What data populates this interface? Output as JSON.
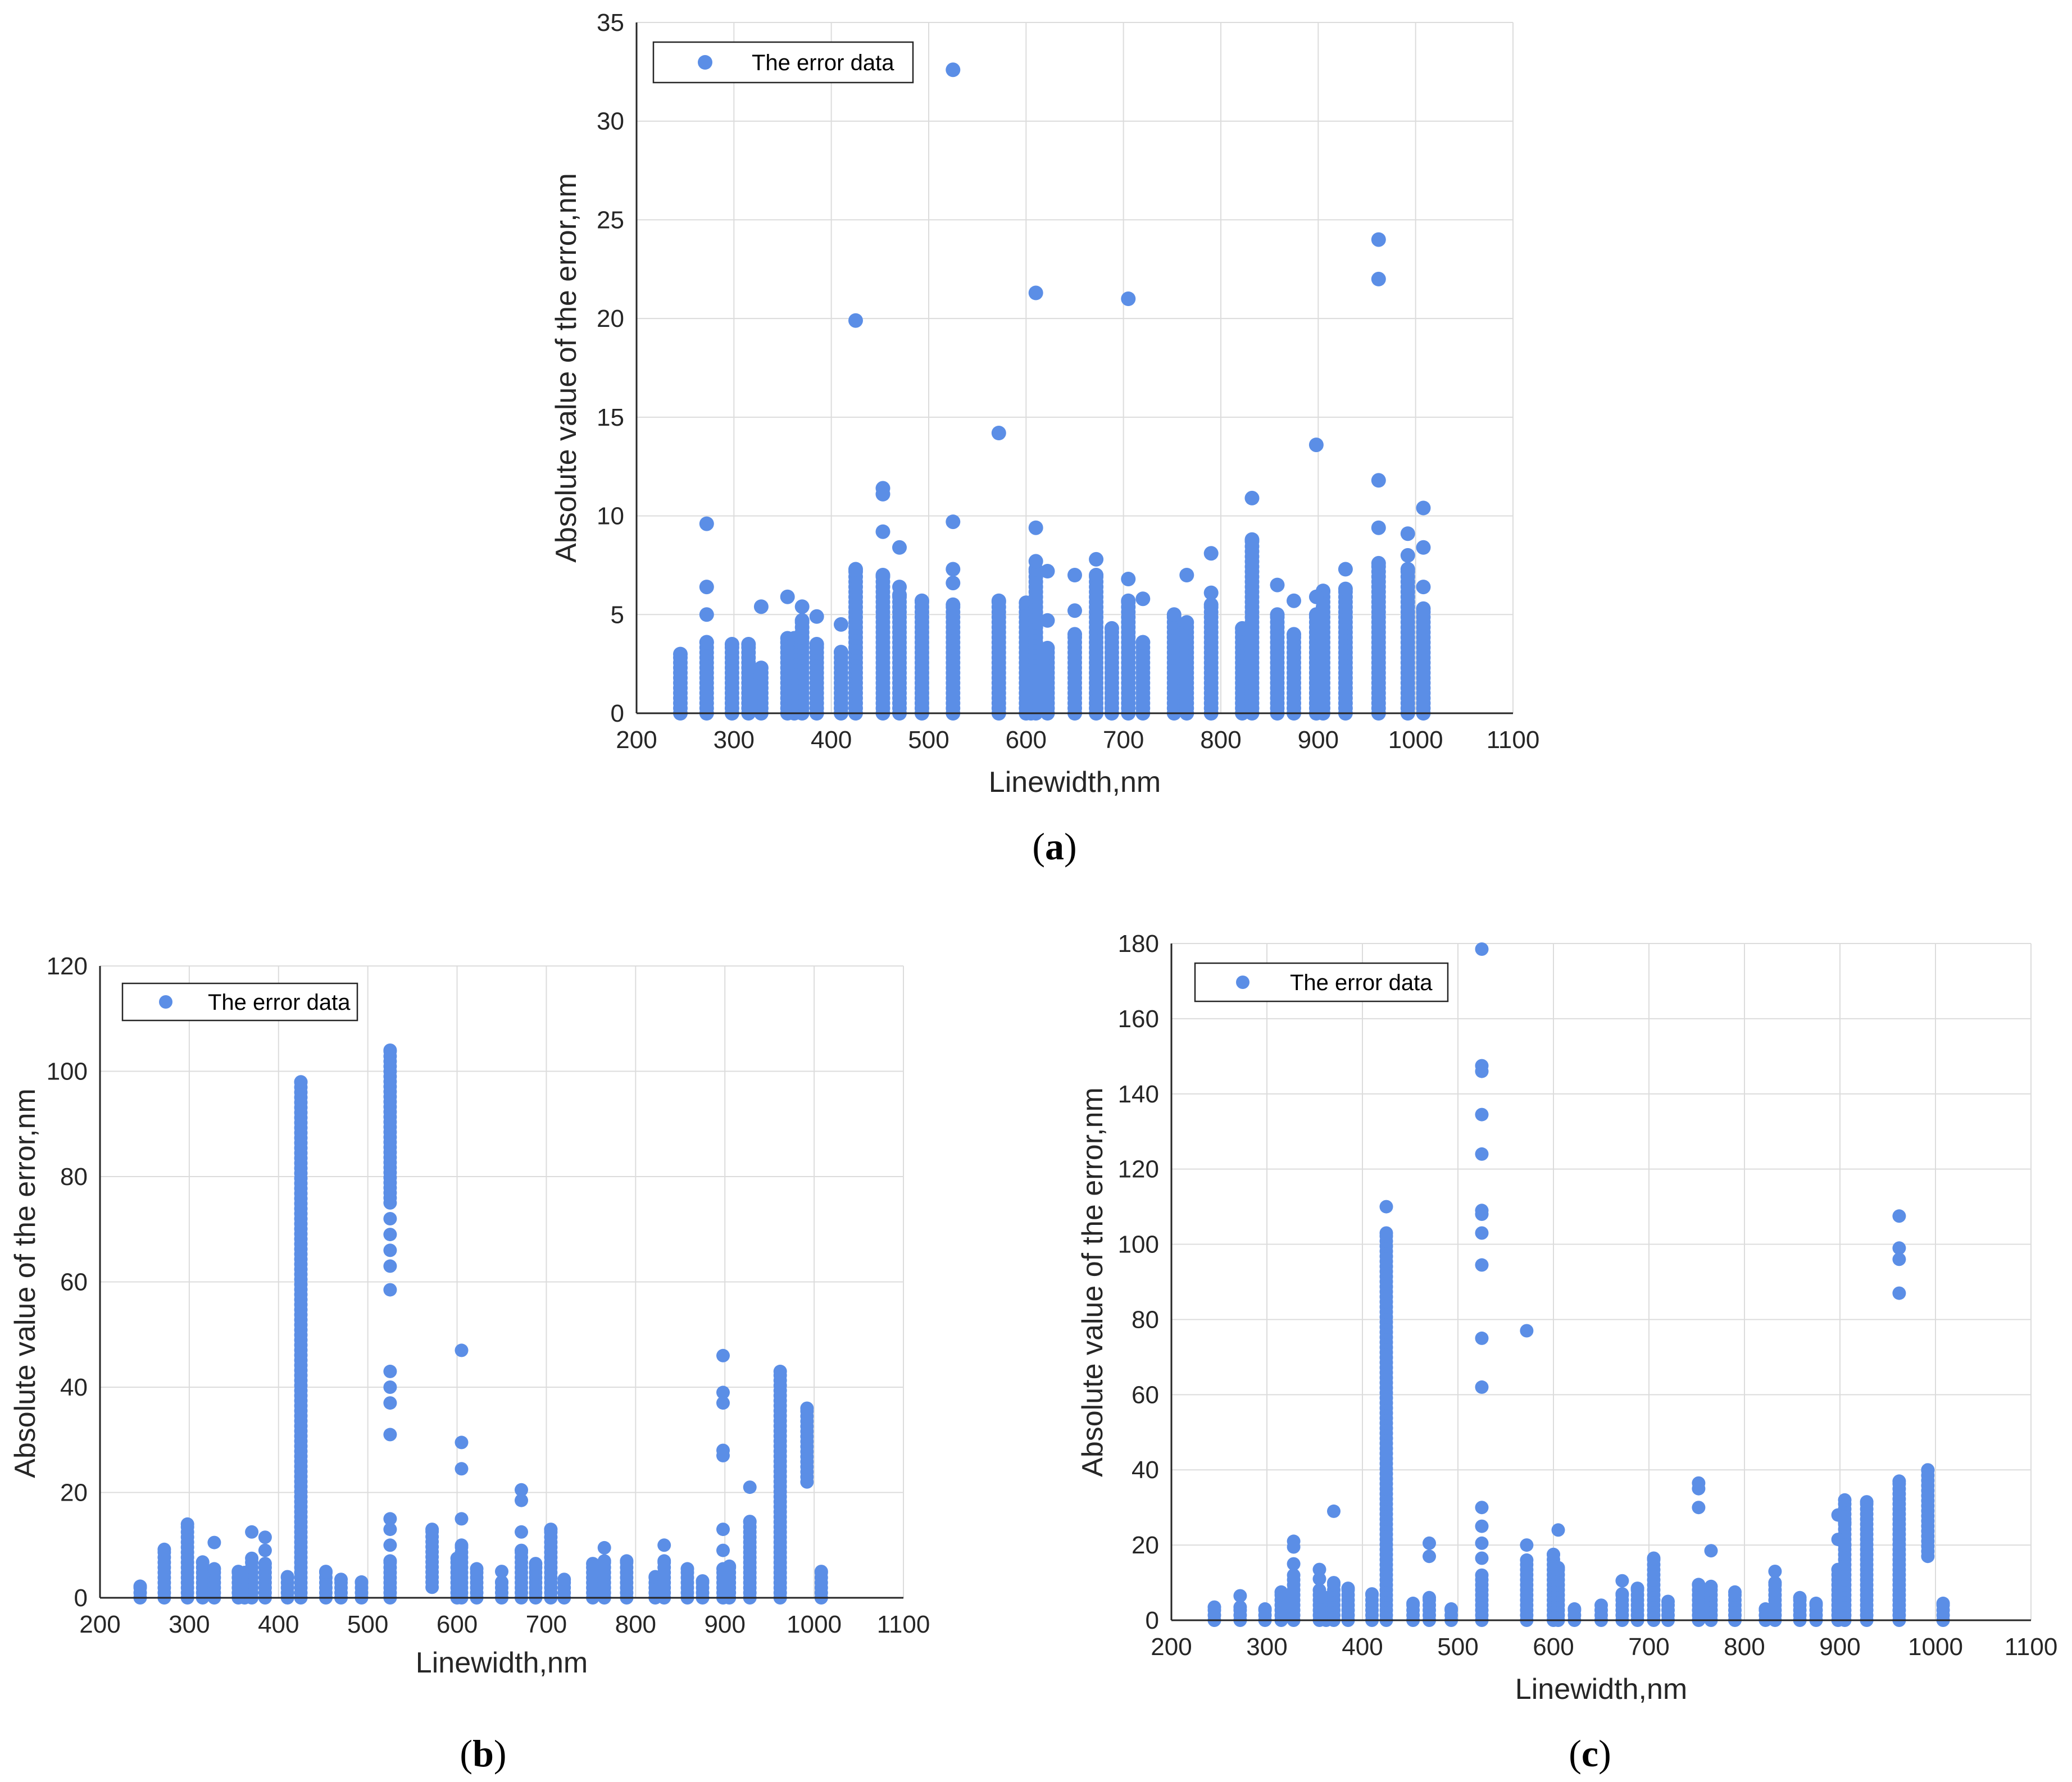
{
  "chart_data": [
    {
      "id": "a",
      "type": "scatter",
      "caption": "a",
      "xlabel": "Linewidth,nm",
      "ylabel": "Absolute value of the error,nm",
      "xlim": [
        200,
        1100
      ],
      "ylim": [
        0,
        35
      ],
      "xticks": [
        "200",
        "300",
        "400",
        "500",
        "600",
        "700",
        "800",
        "900",
        "1000",
        "1100"
      ],
      "yticks": [
        "0",
        "5",
        "10",
        "15",
        "20",
        "25",
        "30",
        "35"
      ],
      "legend": "The error data",
      "legend_position": "top-left",
      "color": "#5b8ee6",
      "clusters": [
        {
          "x": 245,
          "max": 3.0
        },
        {
          "x": 272,
          "max": 3.6
        },
        {
          "x": 298,
          "max": 3.5
        },
        {
          "x": 315,
          "max": 3.5
        },
        {
          "x": 328,
          "max": 2.3
        },
        {
          "x": 355,
          "max": 3.8
        },
        {
          "x": 362,
          "max": 3.8
        },
        {
          "x": 370,
          "max": 4.7
        },
        {
          "x": 385,
          "max": 3.5
        },
        {
          "x": 410,
          "max": 3.1
        },
        {
          "x": 425,
          "max": 7.3
        },
        {
          "x": 453,
          "max": 7.0
        },
        {
          "x": 470,
          "max": 6.0
        },
        {
          "x": 493,
          "max": 5.7
        },
        {
          "x": 525,
          "max": 5.5
        },
        {
          "x": 572,
          "max": 5.7
        },
        {
          "x": 600,
          "max": 5.6
        },
        {
          "x": 605,
          "max": 5.0
        },
        {
          "x": 610,
          "max": 7.3
        },
        {
          "x": 622,
          "max": 3.3
        },
        {
          "x": 650,
          "max": 4.0
        },
        {
          "x": 672,
          "max": 7.0
        },
        {
          "x": 688,
          "max": 4.3
        },
        {
          "x": 705,
          "max": 5.7
        },
        {
          "x": 720,
          "max": 3.6
        },
        {
          "x": 752,
          "max": 5.0
        },
        {
          "x": 765,
          "max": 4.6
        },
        {
          "x": 790,
          "max": 5.5
        },
        {
          "x": 822,
          "max": 4.3
        },
        {
          "x": 832,
          "max": 8.8
        },
        {
          "x": 858,
          "max": 5.0
        },
        {
          "x": 875,
          "max": 4.0
        },
        {
          "x": 898,
          "max": 5.0
        },
        {
          "x": 905,
          "max": 6.2
        },
        {
          "x": 928,
          "max": 6.3
        },
        {
          "x": 962,
          "max": 7.6
        },
        {
          "x": 992,
          "max": 7.3
        },
        {
          "x": 1008,
          "max": 5.3
        }
      ],
      "outliers": [
        {
          "x": 272,
          "y": 9.6
        },
        {
          "x": 272,
          "y": 6.4
        },
        {
          "x": 272,
          "y": 5.0
        },
        {
          "x": 328,
          "y": 5.4
        },
        {
          "x": 355,
          "y": 5.9
        },
        {
          "x": 370,
          "y": 5.4
        },
        {
          "x": 385,
          "y": 4.9
        },
        {
          "x": 410,
          "y": 4.5
        },
        {
          "x": 425,
          "y": 19.9
        },
        {
          "x": 453,
          "y": 11.4
        },
        {
          "x": 453,
          "y": 11.1
        },
        {
          "x": 453,
          "y": 9.2
        },
        {
          "x": 470,
          "y": 8.4
        },
        {
          "x": 470,
          "y": 6.4
        },
        {
          "x": 525,
          "y": 32.6
        },
        {
          "x": 525,
          "y": 9.7
        },
        {
          "x": 525,
          "y": 7.3
        },
        {
          "x": 525,
          "y": 6.6
        },
        {
          "x": 572,
          "y": 14.2
        },
        {
          "x": 610,
          "y": 21.3
        },
        {
          "x": 610,
          "y": 9.4
        },
        {
          "x": 610,
          "y": 7.7
        },
        {
          "x": 622,
          "y": 7.2
        },
        {
          "x": 622,
          "y": 4.7
        },
        {
          "x": 650,
          "y": 7.0
        },
        {
          "x": 650,
          "y": 5.2
        },
        {
          "x": 672,
          "y": 7.8
        },
        {
          "x": 705,
          "y": 21.0
        },
        {
          "x": 705,
          "y": 6.8
        },
        {
          "x": 720,
          "y": 5.8
        },
        {
          "x": 765,
          "y": 7.0
        },
        {
          "x": 790,
          "y": 8.1
        },
        {
          "x": 790,
          "y": 6.1
        },
        {
          "x": 832,
          "y": 10.9
        },
        {
          "x": 858,
          "y": 6.5
        },
        {
          "x": 875,
          "y": 5.7
        },
        {
          "x": 898,
          "y": 13.6
        },
        {
          "x": 898,
          "y": 5.9
        },
        {
          "x": 928,
          "y": 7.3
        },
        {
          "x": 962,
          "y": 24.0
        },
        {
          "x": 962,
          "y": 22.0
        },
        {
          "x": 962,
          "y": 11.8
        },
        {
          "x": 962,
          "y": 9.4
        },
        {
          "x": 992,
          "y": 9.1
        },
        {
          "x": 992,
          "y": 8.0
        },
        {
          "x": 1008,
          "y": 10.4
        },
        {
          "x": 1008,
          "y": 8.4
        },
        {
          "x": 1008,
          "y": 6.4
        }
      ]
    },
    {
      "id": "b",
      "type": "scatter",
      "caption": "b",
      "xlabel": "Linewidth,nm",
      "ylabel": "Absolute value of the error,nm",
      "xlim": [
        200,
        1100
      ],
      "ylim": [
        0,
        120
      ],
      "xticks": [
        "200",
        "300",
        "400",
        "500",
        "600",
        "700",
        "800",
        "900",
        "1000",
        "1100"
      ],
      "yticks": [
        "0",
        "20",
        "40",
        "60",
        "80",
        "100",
        "120"
      ],
      "legend": "The error data",
      "legend_position": "top-left",
      "color": "#5b8ee6",
      "clusters": [
        {
          "x": 245,
          "max": 2.2
        },
        {
          "x": 272,
          "max": 9.2
        },
        {
          "x": 298,
          "max": 14.0
        },
        {
          "x": 315,
          "max": 6.8
        },
        {
          "x": 328,
          "max": 5.5
        },
        {
          "x": 355,
          "max": 5.0
        },
        {
          "x": 362,
          "max": 4.8
        },
        {
          "x": 370,
          "max": 7.5
        },
        {
          "x": 385,
          "max": 6.5
        },
        {
          "x": 410,
          "max": 4.0
        },
        {
          "x": 425,
          "max": 98.0
        },
        {
          "x": 453,
          "max": 5.0
        },
        {
          "x": 470,
          "max": 3.5
        },
        {
          "x": 493,
          "max": 3.0
        },
        {
          "x": 525,
          "max": 7.0
        },
        {
          "x": 525,
          "min": 75,
          "max": 104
        },
        {
          "x": 572,
          "min": 2,
          "max": 13.0
        },
        {
          "x": 600,
          "max": 7.5
        },
        {
          "x": 605,
          "max": 10.0
        },
        {
          "x": 622,
          "max": 5.5
        },
        {
          "x": 650,
          "max": 3.0
        },
        {
          "x": 672,
          "max": 9.0
        },
        {
          "x": 688,
          "max": 6.5
        },
        {
          "x": 705,
          "max": 13.0
        },
        {
          "x": 720,
          "max": 3.5
        },
        {
          "x": 752,
          "max": 6.5
        },
        {
          "x": 765,
          "max": 7.0
        },
        {
          "x": 790,
          "max": 7.0
        },
        {
          "x": 822,
          "max": 4.0
        },
        {
          "x": 832,
          "max": 7.0
        },
        {
          "x": 858,
          "max": 5.5
        },
        {
          "x": 875,
          "max": 3.2
        },
        {
          "x": 898,
          "max": 5.5
        },
        {
          "x": 905,
          "max": 6.0
        },
        {
          "x": 928,
          "max": 14.5
        },
        {
          "x": 962,
          "max": 43.0
        },
        {
          "x": 992,
          "min": 22,
          "max": 36.0
        },
        {
          "x": 1008,
          "max": 5.0
        }
      ],
      "outliers": [
        {
          "x": 328,
          "y": 10.5
        },
        {
          "x": 370,
          "y": 12.5
        },
        {
          "x": 385,
          "y": 11.5
        },
        {
          "x": 385,
          "y": 9.0
        },
        {
          "x": 525,
          "y": 72.0
        },
        {
          "x": 525,
          "y": 69.0
        },
        {
          "x": 525,
          "y": 66.0
        },
        {
          "x": 525,
          "y": 63.0
        },
        {
          "x": 525,
          "y": 58.5
        },
        {
          "x": 525,
          "y": 43.0
        },
        {
          "x": 525,
          "y": 40.0
        },
        {
          "x": 525,
          "y": 37.0
        },
        {
          "x": 525,
          "y": 31.0
        },
        {
          "x": 525,
          "y": 15.0
        },
        {
          "x": 525,
          "y": 13.0
        },
        {
          "x": 525,
          "y": 10.0
        },
        {
          "x": 605,
          "y": 47.0
        },
        {
          "x": 605,
          "y": 29.5
        },
        {
          "x": 605,
          "y": 24.5
        },
        {
          "x": 605,
          "y": 15.0
        },
        {
          "x": 650,
          "y": 5.0
        },
        {
          "x": 672,
          "y": 20.5
        },
        {
          "x": 672,
          "y": 18.5
        },
        {
          "x": 672,
          "y": 12.5
        },
        {
          "x": 765,
          "y": 9.5
        },
        {
          "x": 832,
          "y": 10.0
        },
        {
          "x": 898,
          "y": 46.0
        },
        {
          "x": 898,
          "y": 39.0
        },
        {
          "x": 898,
          "y": 37.0
        },
        {
          "x": 898,
          "y": 28.0
        },
        {
          "x": 898,
          "y": 27.0
        },
        {
          "x": 898,
          "y": 13.0
        },
        {
          "x": 898,
          "y": 9.0
        },
        {
          "x": 928,
          "y": 21.0
        }
      ]
    },
    {
      "id": "c",
      "type": "scatter",
      "caption": "c",
      "xlabel": "Linewidth,nm",
      "ylabel": "Absolute value of the error,nm",
      "xlim": [
        200,
        1100
      ],
      "ylim": [
        0,
        180
      ],
      "xticks": [
        "200",
        "300",
        "400",
        "500",
        "600",
        "700",
        "800",
        "900",
        "1000",
        "1100"
      ],
      "yticks": [
        "0",
        "20",
        "40",
        "60",
        "80",
        "100",
        "120",
        "140",
        "160",
        "180"
      ],
      "legend": "The error data",
      "legend_position": "top-left",
      "color": "#5b8ee6",
      "clusters": [
        {
          "x": 245,
          "max": 3.5
        },
        {
          "x": 272,
          "max": 3.5
        },
        {
          "x": 298,
          "max": 3.0
        },
        {
          "x": 315,
          "max": 7.5
        },
        {
          "x": 328,
          "max": 12.0
        },
        {
          "x": 355,
          "max": 8.0
        },
        {
          "x": 362,
          "max": 6.0
        },
        {
          "x": 370,
          "max": 10.0
        },
        {
          "x": 385,
          "max": 8.5
        },
        {
          "x": 410,
          "max": 7.0
        },
        {
          "x": 425,
          "max": 103.0
        },
        {
          "x": 453,
          "max": 4.5
        },
        {
          "x": 470,
          "max": 6.0
        },
        {
          "x": 493,
          "max": 3.0
        },
        {
          "x": 525,
          "max": 12.0
        },
        {
          "x": 572,
          "max": 16.0
        },
        {
          "x": 600,
          "max": 17.5
        },
        {
          "x": 605,
          "max": 14.0
        },
        {
          "x": 622,
          "max": 3.0
        },
        {
          "x": 650,
          "max": 4.0
        },
        {
          "x": 672,
          "max": 7.0
        },
        {
          "x": 688,
          "max": 8.5
        },
        {
          "x": 705,
          "max": 16.5
        },
        {
          "x": 720,
          "max": 5.0
        },
        {
          "x": 752,
          "max": 9.5
        },
        {
          "x": 765,
          "max": 9.0
        },
        {
          "x": 790,
          "max": 7.5
        },
        {
          "x": 822,
          "max": 3.0
        },
        {
          "x": 832,
          "max": 10.0
        },
        {
          "x": 858,
          "max": 6.0
        },
        {
          "x": 875,
          "max": 4.5
        },
        {
          "x": 898,
          "max": 13.5
        },
        {
          "x": 905,
          "max": 32.0
        },
        {
          "x": 928,
          "max": 31.5
        },
        {
          "x": 962,
          "max": 37.0
        },
        {
          "x": 992,
          "min": 17,
          "max": 40.0
        },
        {
          "x": 1008,
          "max": 4.5
        }
      ],
      "outliers": [
        {
          "x": 272,
          "y": 6.5
        },
        {
          "x": 328,
          "y": 21.0
        },
        {
          "x": 328,
          "y": 19.5
        },
        {
          "x": 328,
          "y": 15.0
        },
        {
          "x": 355,
          "y": 13.5
        },
        {
          "x": 355,
          "y": 11.0
        },
        {
          "x": 370,
          "y": 29.0
        },
        {
          "x": 425,
          "y": 110.0
        },
        {
          "x": 470,
          "y": 20.5
        },
        {
          "x": 470,
          "y": 17.0
        },
        {
          "x": 525,
          "y": 178.5
        },
        {
          "x": 525,
          "y": 147.5
        },
        {
          "x": 525,
          "y": 146.0
        },
        {
          "x": 525,
          "y": 134.5
        },
        {
          "x": 525,
          "y": 124.0
        },
        {
          "x": 525,
          "y": 109.0
        },
        {
          "x": 525,
          "y": 108.0
        },
        {
          "x": 525,
          "y": 103.0
        },
        {
          "x": 525,
          "y": 94.5
        },
        {
          "x": 525,
          "y": 75.0
        },
        {
          "x": 525,
          "y": 62.0
        },
        {
          "x": 525,
          "y": 30.0
        },
        {
          "x": 525,
          "y": 25.0
        },
        {
          "x": 525,
          "y": 20.5
        },
        {
          "x": 525,
          "y": 16.5
        },
        {
          "x": 572,
          "y": 77.0
        },
        {
          "x": 572,
          "y": 20.0
        },
        {
          "x": 605,
          "y": 24.0
        },
        {
          "x": 672,
          "y": 10.5
        },
        {
          "x": 752,
          "y": 36.5
        },
        {
          "x": 752,
          "y": 35.0
        },
        {
          "x": 752,
          "y": 30.0
        },
        {
          "x": 765,
          "y": 18.5
        },
        {
          "x": 832,
          "y": 13.0
        },
        {
          "x": 898,
          "y": 28.0
        },
        {
          "x": 898,
          "y": 21.5
        },
        {
          "x": 905,
          "y": 26.0
        },
        {
          "x": 905,
          "y": 20.0
        },
        {
          "x": 962,
          "y": 107.5
        },
        {
          "x": 962,
          "y": 99.0
        },
        {
          "x": 962,
          "y": 96.0
        },
        {
          "x": 962,
          "y": 87.0
        }
      ]
    }
  ]
}
